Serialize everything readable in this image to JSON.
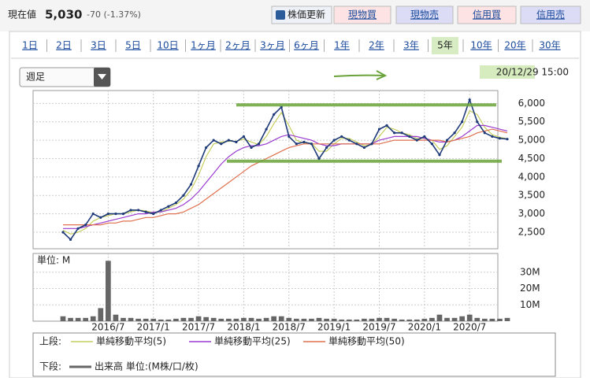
{
  "header": {
    "price_label": "現在値",
    "price": "5,030",
    "change": "-70 (-1.37%)",
    "buttons": [
      "株価更新",
      "現物買",
      "現物売",
      "信用買",
      "信用売"
    ]
  },
  "tabs": [
    "1日",
    "2日",
    "3日",
    "5日",
    "10日",
    "1ヶ月",
    "2ヶ月",
    "3ヶ月",
    "6ヶ月",
    "1年",
    "2年",
    "3年",
    "5年",
    "10年",
    "20年",
    "30年"
  ],
  "selected_tab": "5年",
  "period_select": "週足",
  "timestamp": "20/12/29 15:00",
  "legend": {
    "upper": "上段:",
    "lower": "下段:"
  },
  "chart_data": {
    "type": "stock",
    "categories": [
      null,
      null,
      null,
      null,
      null,
      null,
      "2016/7",
      null,
      null,
      null,
      null,
      null,
      "2017/1",
      null,
      null,
      null,
      null,
      null,
      "2017/7",
      null,
      null,
      null,
      null,
      null,
      "2018/1",
      null,
      null,
      null,
      null,
      null,
      "2018/7",
      null,
      null,
      null,
      null,
      null,
      "2019/1",
      null,
      null,
      null,
      null,
      null,
      "2019/7",
      null,
      null,
      null,
      null,
      null,
      "2020/1",
      null,
      null,
      null,
      null,
      null,
      "2020/7",
      null,
      null,
      null,
      null,
      null
    ],
    "values": [
      2500,
      2300,
      2600,
      2700,
      3000,
      2900,
      3000,
      3000,
      3000,
      3100,
      3100,
      3050,
      3000,
      3100,
      3200,
      3300,
      3500,
      3800,
      4300,
      4800,
      5000,
      4900,
      5000,
      4950,
      5100,
      4800,
      4900,
      5300,
      5700,
      5900,
      5100,
      4900,
      4950,
      4900,
      4500,
      4800,
      5000,
      5100,
      5000,
      4900,
      4800,
      4900,
      5300,
      5400,
      5200,
      5200,
      5100,
      5000,
      5100,
      4900,
      4600,
      5000,
      5200,
      5500,
      6100,
      5500,
      5200,
      5100,
      5050,
      5030
    ],
    "color": "#1f3a78",
    "series": [
      {
        "name": "単純移動平均(5)",
        "color": "#c6cf5e",
        "values": [
          2550,
          2450,
          2500,
          2600,
          2800,
          2900,
          2950,
          3000,
          3000,
          3050,
          3100,
          3080,
          3030,
          3050,
          3150,
          3250,
          3400,
          3650,
          4050,
          4550,
          4900,
          4950,
          4970,
          4970,
          5030,
          4950,
          4880,
          5100,
          5450,
          5750,
          5400,
          5000,
          4920,
          4920,
          4700,
          4700,
          4900,
          5050,
          5050,
          4950,
          4850,
          4880,
          5100,
          5350,
          5300,
          5200,
          5150,
          5050,
          5050,
          5000,
          4750,
          4850,
          5100,
          5350,
          5800,
          5700,
          5350,
          5150,
          5080,
          5040
        ]
      },
      {
        "name": "単純移動平均(25)",
        "color": "#9a3ccf",
        "values": [
          2600,
          2600,
          2600,
          2650,
          2700,
          2750,
          2800,
          2850,
          2900,
          2950,
          3000,
          3000,
          3050,
          3050,
          3100,
          3150,
          3250,
          3400,
          3600,
          3850,
          4100,
          4350,
          4550,
          4700,
          4800,
          4850,
          4850,
          4900,
          5000,
          5100,
          5150,
          5100,
          5050,
          5000,
          4900,
          4850,
          4850,
          4900,
          4900,
          4900,
          4900,
          4900,
          5000,
          5050,
          5100,
          5100,
          5100,
          5100,
          5050,
          5000,
          4950,
          4950,
          5000,
          5100,
          5250,
          5400,
          5400,
          5350,
          5300,
          5250
        ]
      },
      {
        "name": "単純移動平均(50)",
        "color": "#e0704f",
        "values": [
          2700,
          2700,
          2700,
          2700,
          2700,
          2700,
          2750,
          2750,
          2800,
          2800,
          2850,
          2900,
          2900,
          2950,
          3000,
          3000,
          3050,
          3150,
          3250,
          3400,
          3550,
          3700,
          3850,
          4000,
          4150,
          4300,
          4400,
          4500,
          4600,
          4700,
          4800,
          4850,
          4900,
          4900,
          4900,
          4900,
          4900,
          4900,
          4900,
          4900,
          4900,
          4900,
          4900,
          4950,
          5000,
          5000,
          5000,
          5000,
          5000,
          5000,
          5000,
          4950,
          5000,
          5050,
          5100,
          5200,
          5250,
          5300,
          5250,
          5200
        ]
      }
    ],
    "ylim": [
      2050,
      6350
    ],
    "yticks": [
      {
        "value": 2500,
        "label": "2,500"
      },
      {
        "value": 3000,
        "label": "3,000"
      },
      {
        "value": 3500,
        "label": "3,500"
      },
      {
        "value": 4000,
        "label": "4,000"
      },
      {
        "value": 4500,
        "label": "4,500"
      },
      {
        "value": 5000,
        "label": "5,000"
      },
      {
        "value": 5500,
        "label": "5,500"
      },
      {
        "value": 6000,
        "label": "6,000"
      }
    ],
    "grid": true,
    "reference_lines": [
      5960,
      4430
    ],
    "reference_color": "#6aa33a",
    "volume": {
      "name": "出来高 単位:(M株/口/枚)",
      "unit_label": "単位: M",
      "color": "#666666",
      "values": [
        3,
        2,
        2,
        2,
        3,
        8,
        37,
        4,
        2,
        2,
        1.5,
        1.5,
        1.5,
        1,
        1,
        1.5,
        2,
        2,
        3,
        2.5,
        2,
        1.5,
        1.5,
        1.5,
        2,
        2,
        1.5,
        2,
        3,
        3,
        2,
        1.5,
        1.5,
        1.5,
        2,
        1.5,
        1.5,
        1,
        1,
        1,
        1.5,
        1.5,
        2,
        2,
        1.5,
        1,
        1,
        1,
        1.5,
        2,
        4,
        2,
        2,
        3,
        4,
        2,
        1.5,
        1.5,
        1.5,
        2
      ],
      "ylim": [
        0,
        41.5
      ],
      "yticks": [
        {
          "value": 10,
          "label": "10M"
        },
        {
          "value": 20,
          "label": "20M"
        },
        {
          "value": 30,
          "label": "30M"
        }
      ]
    }
  }
}
